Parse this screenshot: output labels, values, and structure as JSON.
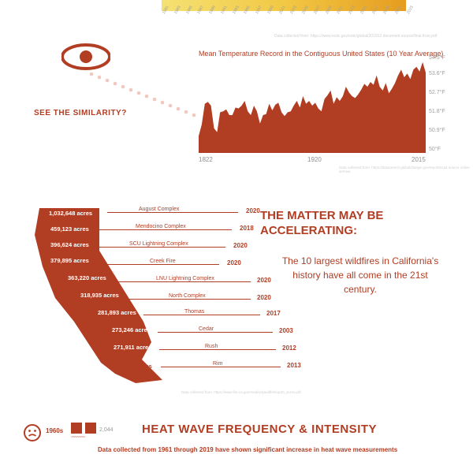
{
  "palette": {
    "accent": "#b13d23",
    "muted": "#9f9f9f",
    "light": "#cfcfcf"
  },
  "gradient_years": [
    "1981",
    "1983",
    "1985",
    "1987",
    "1989",
    "1991",
    "1993",
    "1995",
    "1997",
    "1999",
    "2001",
    "2003",
    "2005",
    "2007",
    "2009",
    "2011",
    "2013",
    "2015",
    "2017",
    "2019",
    "2021",
    "2023"
  ],
  "credit_a": "Data collected from: https://www.ncdc.gov/sotc/global/201913 document source/final from pdf",
  "similarity_label": "SEE THE SIMILARITY?",
  "temp_chart": {
    "title": "Mean Temperature Record in the Contiguous United States (10 Year Average)",
    "x_start": 1822,
    "x_mid": 1920,
    "x_end": 2015,
    "ylim": [
      49.5,
      54.7
    ],
    "y_labels": [
      {
        "v": "54.5°F",
        "t": 0
      },
      {
        "v": "53.6°F",
        "t": 20
      },
      {
        "v": "52.7°F",
        "t": 44
      },
      {
        "v": "51.8°F",
        "t": 68
      },
      {
        "v": "50.9°F",
        "t": 92
      },
      {
        "v": "50°F",
        "t": 116
      }
    ],
    "series": [
      0.18,
      0.3,
      0.52,
      0.54,
      0.5,
      0.26,
      0.22,
      0.43,
      0.44,
      0.46,
      0.4,
      0.4,
      0.48,
      0.47,
      0.5,
      0.55,
      0.44,
      0.4,
      0.5,
      0.44,
      0.31,
      0.4,
      0.41,
      0.52,
      0.45,
      0.51,
      0.53,
      0.43,
      0.39,
      0.43,
      0.44,
      0.5,
      0.55,
      0.48,
      0.6,
      0.52,
      0.55,
      0.5,
      0.53,
      0.47,
      0.44,
      0.57,
      0.61,
      0.66,
      0.52,
      0.59,
      0.55,
      0.6,
      0.7,
      0.64,
      0.6,
      0.58,
      0.62,
      0.67,
      0.73,
      0.7,
      0.75,
      0.72,
      0.82,
      0.7,
      0.66,
      0.74,
      0.63,
      0.68,
      0.74,
      0.82,
      0.88,
      0.8,
      0.84,
      0.78,
      0.88,
      0.91,
      0.86,
      0.96,
      0.85
    ],
    "fill": "#b13d23"
  },
  "credit_b": "Data collected from: https://datasearch.globalchange.gov/report/nca4 source online archive",
  "wildfire": {
    "title": "THE MATTER MAY BE ACCELERATING:",
    "subtext": "The 10 largest wildfires in California's history have all come in the 21st century.",
    "fires": [
      {
        "acres": "1,032,648 acres",
        "name": "August Complex",
        "year": "2020",
        "aX": -2,
        "aY": 2,
        "aC": "#fff",
        "nX": 112,
        "nY": -2,
        "lX": 72,
        "lY": 5,
        "lW": 166,
        "yX": 248,
        "yY": -1
      },
      {
        "acres": "459,123 acres",
        "name": "Mendocino Complex",
        "year": "2018",
        "aX": 0,
        "aY": 0,
        "aC": "#fff",
        "nX": 108,
        "nY": -2,
        "lX": 62,
        "lY": 5,
        "lW": 168,
        "yX": 240,
        "yY": -1
      },
      {
        "acres": "396,624 acres",
        "name": "SCU Lightning Complex",
        "year": "2020",
        "aX": 0,
        "aY": -2,
        "aC": "#fff",
        "nX": 100,
        "nY": -2,
        "lX": 59,
        "lY": 5,
        "lW": 163,
        "yX": 232,
        "yY": -1
      },
      {
        "acres": "379,895 acres",
        "name": "Creek Fire",
        "year": "2020",
        "aX": 0,
        "aY": -4,
        "aC": "#fff",
        "nX": 126,
        "nY": -2,
        "lX": 58,
        "lY": 5,
        "lW": 156,
        "yX": 224,
        "yY": -1
      },
      {
        "acres": "363,220 acres",
        "name": "LNU Lightning Complex",
        "year": "2020",
        "aX": 22,
        "aY": -4,
        "aC": "#fff",
        "nX": 134,
        "nY": -2,
        "lX": 82,
        "lY": 5,
        "lW": 172,
        "yX": 262,
        "yY": -1
      },
      {
        "acres": "318,935 acres",
        "name": "North Complex",
        "year": "2020",
        "aX": 38,
        "aY": -4,
        "aC": "#fff",
        "nX": 150,
        "nY": -2,
        "lX": 96,
        "lY": 5,
        "lW": 158,
        "yX": 262,
        "yY": -1
      },
      {
        "acres": "281,893 acres",
        "name": "Thomas",
        "year": "2017",
        "aX": 60,
        "aY": -4,
        "aC": "#fff",
        "nX": 170,
        "nY": -4,
        "lX": 118,
        "lY": 3,
        "lW": 148,
        "yX": 274,
        "yY": -3
      },
      {
        "acres": "273,246 acres",
        "name": "Cedar",
        "year": "2003",
        "aX": 78,
        "aY": -4,
        "aC": "#fff",
        "nX": 188,
        "nY": -4,
        "lX": 136,
        "lY": 3,
        "lW": 146,
        "yX": 290,
        "yY": -3
      },
      {
        "acres": "271,911 acres",
        "name": "Rush",
        "year": "2012",
        "aX": 80,
        "aY": -4,
        "aC": "#fff",
        "nX": 196,
        "nY": -4,
        "lX": 138,
        "lY": 3,
        "lW": 148,
        "yX": 294,
        "yY": -3
      },
      {
        "acres": "257,314 acres",
        "name": "Rim",
        "year": "2013",
        "aX": 80,
        "aY": -2,
        "aC": "#b13d23",
        "nX": 206,
        "nY": -4,
        "lX": 140,
        "lY": 3,
        "lW": 152,
        "yX": 300,
        "yY": -3
      }
    ],
    "credit": "Data collected from: https://www.fire.ca.gov/media/4jandlhh/top20_acres.pdf"
  },
  "heatwave": {
    "decade": "1960s",
    "extra": "2,044",
    "title": "HEAT WAVE FREQUENCY & INTENSITY",
    "sub": "Data collected from 1961 through 2019 have shown significant increase in heat wave measurements"
  }
}
